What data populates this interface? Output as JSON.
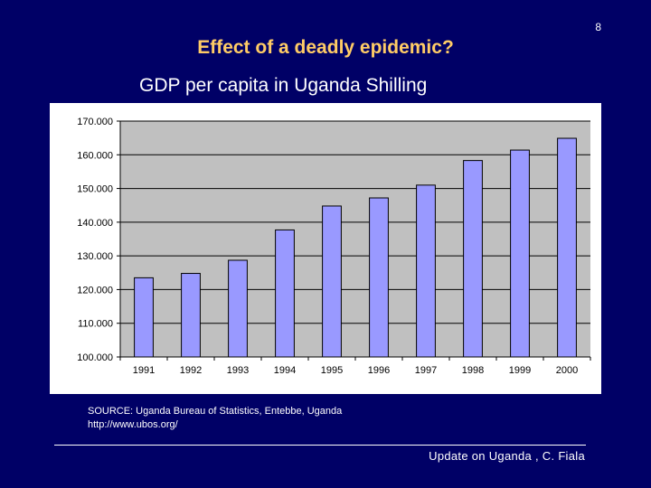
{
  "slide": {
    "number": "8",
    "title": "Effect of a deadly epidemic?",
    "chart_heading": "GDP per capita in Uganda Shilling",
    "source_line1": "SOURCE: Uganda Bureau of Statistics, Entebbe, Uganda",
    "source_line2": "http://www.ubos.org/",
    "footer": "Update on Uganda , C. Fiala"
  },
  "colors": {
    "background": "#000066",
    "title": "#ffcc66",
    "plot_area": "#c0c0c0",
    "bar_fill": "#9999ff",
    "bar_stroke": "#000000"
  },
  "chart_data": {
    "type": "bar",
    "title": "GDP per capita in Uganda Shilling",
    "xlabel": "",
    "ylabel": "",
    "categories": [
      "1991",
      "1992",
      "1993",
      "1994",
      "1995",
      "1996",
      "1997",
      "1998",
      "1999",
      "2000"
    ],
    "values": [
      123500,
      124800,
      128700,
      137700,
      144800,
      147200,
      151000,
      158300,
      161400,
      164900
    ],
    "ylim": [
      100000,
      170000
    ],
    "yticks": [
      100000,
      110000,
      120000,
      130000,
      140000,
      150000,
      160000,
      170000
    ],
    "ytick_labels": [
      "100.000",
      "110.000",
      "120.000",
      "130.000",
      "140.000",
      "150.000",
      "160.000",
      "170.000"
    ],
    "grid": true,
    "legend": "none"
  }
}
